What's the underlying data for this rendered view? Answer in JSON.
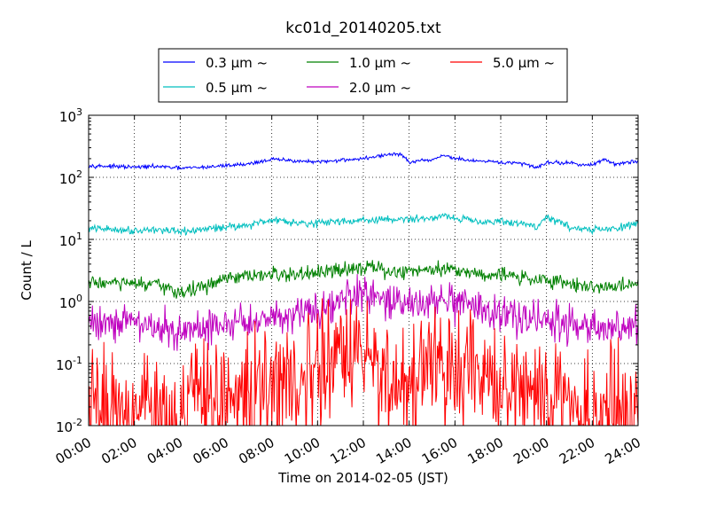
{
  "chart_data": {
    "type": "line",
    "title": "kc01d_20140205.txt",
    "xlabel": "Time on 2014-02-05 (JST)",
    "ylabel": "Count / L",
    "x_unit": "hours",
    "xlim": [
      0,
      24
    ],
    "ylim": [
      0.01,
      1000
    ],
    "yscale": "log",
    "grid": true,
    "legend_position": "top-center, above plot",
    "x_ticks": [
      {
        "value": 0,
        "label": "00:00"
      },
      {
        "value": 2,
        "label": "02:00"
      },
      {
        "value": 4,
        "label": "04:00"
      },
      {
        "value": 6,
        "label": "06:00"
      },
      {
        "value": 8,
        "label": "08:00"
      },
      {
        "value": 10,
        "label": "10:00"
      },
      {
        "value": 12,
        "label": "12:00"
      },
      {
        "value": 14,
        "label": "14:00"
      },
      {
        "value": 16,
        "label": "16:00"
      },
      {
        "value": 18,
        "label": "18:00"
      },
      {
        "value": 20,
        "label": "20:00"
      },
      {
        "value": 22,
        "label": "22:00"
      },
      {
        "value": 24,
        "label": "24:00"
      }
    ],
    "y_ticks": [
      {
        "value": 0.01,
        "base": "10",
        "exp": "-2"
      },
      {
        "value": 0.1,
        "base": "10",
        "exp": "-1"
      },
      {
        "value": 1,
        "base": "10",
        "exp": "0"
      },
      {
        "value": 10,
        "base": "10",
        "exp": "1"
      },
      {
        "value": 100,
        "base": "10",
        "exp": "2"
      },
      {
        "value": 1000,
        "base": "10",
        "exp": "3"
      }
    ],
    "legend": [
      {
        "label": "0.3 μm ~",
        "color": "#0000ff"
      },
      {
        "label": "1.0 μm ~",
        "color": "#008000"
      },
      {
        "label": "5.0 μm ~",
        "color": "#ff0000"
      },
      {
        "label": "0.5 μm ~",
        "color": "#00bfbf"
      },
      {
        "label": "2.0 μm ~",
        "color": "#bf00bf"
      }
    ],
    "series": [
      {
        "name": "0.3 μm ~",
        "color": "#0000ff",
        "x": [
          0,
          1,
          2,
          3,
          4,
          5,
          6,
          7,
          8,
          9,
          10,
          11,
          12,
          13,
          13.6,
          14,
          15,
          15.5,
          16,
          17,
          18,
          19,
          19.6,
          20,
          21,
          22,
          22.5,
          23,
          24
        ],
        "y": [
          155,
          150,
          145,
          150,
          140,
          145,
          155,
          165,
          195,
          185,
          175,
          190,
          200,
          230,
          240,
          175,
          190,
          230,
          200,
          180,
          175,
          165,
          145,
          175,
          170,
          155,
          200,
          160,
          185
        ],
        "noise": 0.015
      },
      {
        "name": "0.5 μm ~",
        "color": "#00bfbf",
        "x": [
          0,
          1,
          2,
          3,
          4,
          5,
          6,
          7,
          8,
          9,
          10,
          11,
          12,
          13,
          14,
          15,
          15.5,
          16,
          17,
          18,
          19,
          19.6,
          20,
          21,
          22,
          23,
          24
        ],
        "y": [
          15,
          14.5,
          14,
          14.5,
          13,
          14.5,
          16,
          17,
          21,
          19,
          18,
          20,
          20,
          21,
          21,
          22,
          25,
          22,
          20,
          19,
          18,
          16,
          23,
          16,
          14,
          15,
          18
        ],
        "noise": 0.03
      },
      {
        "name": "1.0 μm ~",
        "color": "#008000",
        "x": [
          0,
          1,
          2,
          3,
          4,
          5,
          6,
          7,
          8,
          9,
          10,
          11,
          12,
          13,
          14,
          15,
          16,
          17,
          18,
          19,
          20,
          21,
          22,
          23,
          24
        ],
        "y": [
          2.0,
          2.0,
          1.9,
          1.8,
          1.4,
          1.7,
          2.3,
          2.5,
          2.7,
          2.7,
          2.8,
          3.2,
          3.8,
          3.0,
          3.0,
          3.5,
          3.3,
          2.8,
          2.7,
          2.4,
          2.2,
          2.0,
          1.7,
          1.7,
          2.0
        ],
        "noise": 0.06
      },
      {
        "name": "2.0 μm ~",
        "color": "#bf00bf",
        "x": [
          0,
          1,
          2,
          3,
          4,
          5,
          6,
          7,
          8,
          9,
          10,
          11,
          12,
          13,
          14,
          15,
          16,
          17,
          18,
          19,
          20,
          21,
          22,
          23,
          24
        ],
        "y": [
          0.45,
          0.5,
          0.45,
          0.4,
          0.3,
          0.35,
          0.45,
          0.45,
          0.6,
          0.65,
          0.8,
          1.0,
          1.3,
          0.9,
          1.0,
          1.0,
          0.85,
          0.75,
          0.6,
          0.55,
          0.5,
          0.45,
          0.35,
          0.35,
          0.4
        ],
        "noise": 0.15
      },
      {
        "name": "5.0 μm ~",
        "color": "#ff0000",
        "x": [
          0,
          2,
          4,
          6,
          8,
          9,
          10,
          11,
          12,
          13,
          14,
          15,
          16,
          17,
          18,
          19,
          20,
          22,
          24
        ],
        "y": [
          0.02,
          0.025,
          0.02,
          0.025,
          0.04,
          0.05,
          0.08,
          0.12,
          0.15,
          0.06,
          0.05,
          0.08,
          0.07,
          0.06,
          0.04,
          0.035,
          0.025,
          0.02,
          0.02
        ],
        "noise": 0.45
      }
    ]
  }
}
